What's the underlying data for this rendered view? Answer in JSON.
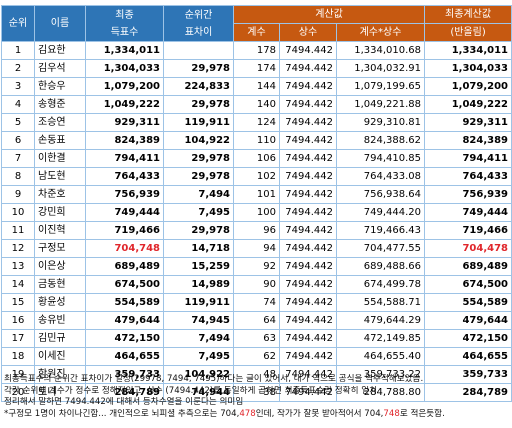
{
  "header": {
    "rank": "순위",
    "name": "이름",
    "final_a": "최종",
    "final_b": "득표수",
    "gap_a": "순위간",
    "gap_b": "표차이",
    "calc": "계산값",
    "coef": "계수",
    "const": "상수",
    "prod": "계수*상수",
    "finalcalc_a": "최종계산값",
    "finalcalc_b": "(반올림)"
  },
  "rows": [
    {
      "rank": "1",
      "name": "김요한",
      "votes": "1,334,011",
      "gap": "",
      "coef": "178",
      "const": "7494.442",
      "prod": "1,334,010.68",
      "final": "1,334,011"
    },
    {
      "rank": "2",
      "name": "김우석",
      "votes": "1,304,033",
      "gap": "29,978",
      "coef": "174",
      "const": "7494.442",
      "prod": "1,304,032.91",
      "final": "1,304,033"
    },
    {
      "rank": "3",
      "name": "한승우",
      "votes": "1,079,200",
      "gap": "224,833",
      "coef": "144",
      "const": "7494.442",
      "prod": "1,079,199.65",
      "final": "1,079,200"
    },
    {
      "rank": "4",
      "name": "송형준",
      "votes": "1,049,222",
      "gap": "29,978",
      "coef": "140",
      "const": "7494.442",
      "prod": "1,049,221.88",
      "final": "1,049,222"
    },
    {
      "rank": "5",
      "name": "조승연",
      "votes": "929,311",
      "gap": "119,911",
      "coef": "124",
      "const": "7494.442",
      "prod": "929,310.81",
      "final": "929,311"
    },
    {
      "rank": "6",
      "name": "손동표",
      "votes": "824,389",
      "gap": "104,922",
      "coef": "110",
      "const": "7494.442",
      "prod": "824,388.62",
      "final": "824,389"
    },
    {
      "rank": "7",
      "name": "이한결",
      "votes": "794,411",
      "gap": "29,978",
      "coef": "106",
      "const": "7494.442",
      "prod": "794,410.85",
      "final": "794,411"
    },
    {
      "rank": "8",
      "name": "남도현",
      "votes": "764,433",
      "gap": "29,978",
      "coef": "102",
      "const": "7494.442",
      "prod": "764,433.08",
      "final": "764,433"
    },
    {
      "rank": "9",
      "name": "차준호",
      "votes": "756,939",
      "gap": "7,494",
      "coef": "101",
      "const": "7494.442",
      "prod": "756,938.64",
      "final": "756,939"
    },
    {
      "rank": "10",
      "name": "강민희",
      "votes": "749,444",
      "gap": "7,495",
      "coef": "100",
      "const": "7494.442",
      "prod": "749,444.20",
      "final": "749,444"
    },
    {
      "rank": "11",
      "name": "이진혁",
      "votes": "719,466",
      "gap": "29,978",
      "coef": "96",
      "const": "7494.442",
      "prod": "719,466.43",
      "final": "719,466"
    },
    {
      "rank": "12",
      "name": "구정모",
      "votes": "704,748",
      "gap": "14,718",
      "coef": "94",
      "const": "7494.442",
      "prod": "704,477.55",
      "final": "704,478",
      "highlight": true
    },
    {
      "rank": "13",
      "name": "이은상",
      "votes": "689,489",
      "gap": "15,259",
      "coef": "92",
      "const": "7494.442",
      "prod": "689,488.66",
      "final": "689,489"
    },
    {
      "rank": "14",
      "name": "금동현",
      "votes": "674,500",
      "gap": "14,989",
      "coef": "90",
      "const": "7494.442",
      "prod": "674,499.78",
      "final": "674,500"
    },
    {
      "rank": "15",
      "name": "황윤성",
      "votes": "554,589",
      "gap": "119,911",
      "coef": "74",
      "const": "7494.442",
      "prod": "554,588.71",
      "final": "554,589"
    },
    {
      "rank": "16",
      "name": "송유빈",
      "votes": "479,644",
      "gap": "74,945",
      "coef": "64",
      "const": "7494.442",
      "prod": "479,644.29",
      "final": "479,644"
    },
    {
      "rank": "17",
      "name": "김민규",
      "votes": "472,150",
      "gap": "7,494",
      "coef": "63",
      "const": "7494.442",
      "prod": "472,149.85",
      "final": "472,150"
    },
    {
      "rank": "18",
      "name": "이세진",
      "votes": "464,655",
      "gap": "7,495",
      "coef": "62",
      "const": "7494.442",
      "prod": "464,655.40",
      "final": "464,655"
    },
    {
      "rank": "19",
      "name": "함원진",
      "votes": "359,733",
      "gap": "104,922",
      "coef": "48",
      "const": "7494.442",
      "prod": "359,733.22",
      "final": "359,733"
    },
    {
      "rank": "20",
      "name": "토니",
      "votes": "284,789",
      "gap": "74,944",
      "coef": "38",
      "const": "7494.442",
      "prod": "284,788.80",
      "final": "284,789"
    }
  ],
  "notes": {
    "line1": "최종득표수의 순위간 표차이가 일정(29978, 7494, 7495)하다는 글이 있어서, 내가 역으로 공식을 역추적해보았음.",
    "line2": "각각 순위에 계수가 정수로 정해져있고, 상수 (7494.442)를 동일하게 곱하면 최종득표수랑 정확히 일치",
    "line3": "정리해서 말하면 7494.442에 대해서 등차수열을 이룬다는 의미임",
    "line4a": "*구정모 1명이  차이나긴함... 개인적으로 뇌피셜 추측으로는 704,",
    "line4b": "478",
    "line4c": "인데, 작가가 잘못 받아적어서 704,",
    "line4d": "748",
    "line4e": "로 적은듯함."
  },
  "colors": {
    "header_blue": "#2e75b6",
    "header_orange": "#c65911",
    "highlight_red": "#e0262b",
    "border": "#9dc3e6"
  }
}
